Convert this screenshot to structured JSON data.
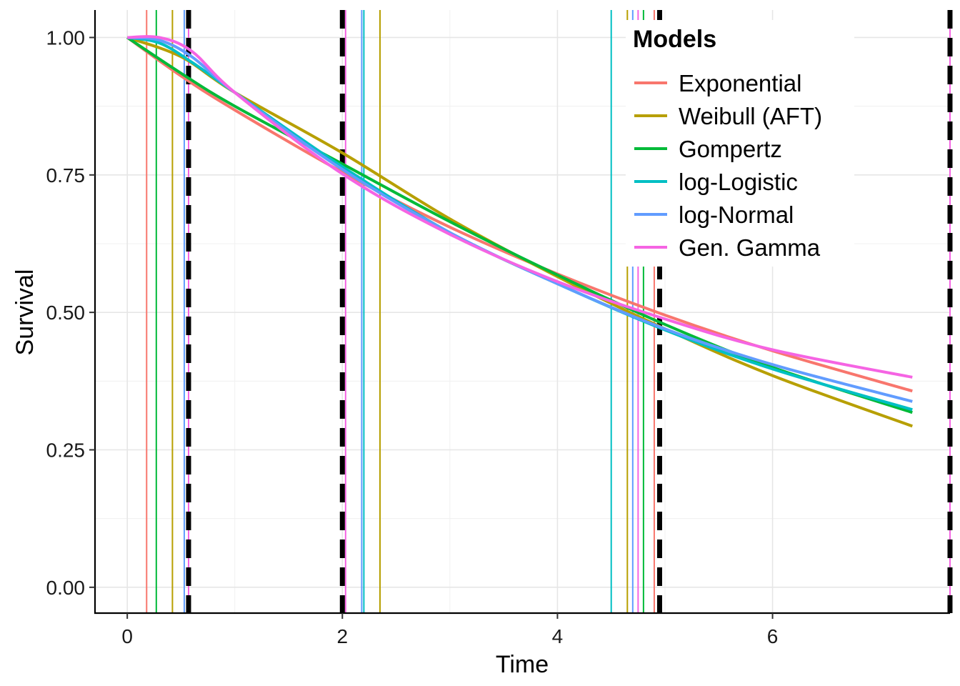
{
  "chart_data": {
    "type": "line",
    "title": "",
    "xlabel": "Time",
    "ylabel": "Survival",
    "xlim": [
      -0.3,
      7.65
    ],
    "ylim": [
      -0.047,
      1.05
    ],
    "x_ticks": [
      0,
      2,
      4,
      6
    ],
    "x_tick_labels": [
      "0",
      "2",
      "4",
      "6"
    ],
    "y_ticks": [
      0,
      0.25,
      0.5,
      0.75,
      1.0
    ],
    "y_tick_labels": [
      "0.00",
      "0.25",
      "0.50",
      "0.75",
      "1.00"
    ],
    "grid": true,
    "legend": {
      "title": "Models",
      "position": "top-right"
    },
    "series": [
      {
        "name": "Exponential",
        "color": "#F8766D",
        "x": [
          0,
          0.5,
          1,
          2,
          3,
          4,
          5,
          6,
          7.3
        ],
        "y": [
          1.0,
          0.93,
          0.868,
          0.755,
          0.655,
          0.57,
          0.495,
          0.43,
          0.357
        ]
      },
      {
        "name": "Weibull (AFT)",
        "color": "#B79F00",
        "x": [
          0,
          0.5,
          1,
          2,
          3,
          4,
          5,
          6,
          7.3
        ],
        "y": [
          1.0,
          0.965,
          0.9,
          0.79,
          0.67,
          0.565,
          0.47,
          0.385,
          0.293
        ]
      },
      {
        "name": "Gompertz",
        "color": "#00BA38",
        "x": [
          0,
          0.5,
          1,
          2,
          3,
          4,
          5,
          6,
          7.3
        ],
        "y": [
          1.0,
          0.935,
          0.875,
          0.77,
          0.665,
          0.568,
          0.478,
          0.4,
          0.318
        ]
      },
      {
        "name": "log-Logistic",
        "color": "#00BFC4",
        "x": [
          0,
          0.3,
          0.6,
          1,
          2,
          3,
          4,
          5,
          6,
          7.3
        ],
        "y": [
          1.0,
          0.99,
          0.955,
          0.9,
          0.765,
          0.645,
          0.552,
          0.468,
          0.397,
          0.323
        ]
      },
      {
        "name": "log-Normal",
        "color": "#619CFF",
        "x": [
          0,
          0.3,
          0.6,
          1,
          2,
          3,
          4,
          5,
          6,
          7.3
        ],
        "y": [
          1.0,
          0.995,
          0.965,
          0.9,
          0.76,
          0.645,
          0.552,
          0.47,
          0.405,
          0.338
        ]
      },
      {
        "name": "Gen. Gamma",
        "color": "#F564E3",
        "x": [
          0,
          0.3,
          0.6,
          1,
          2,
          3,
          4,
          5,
          6,
          7.3
        ],
        "y": [
          1.0,
          1.0,
          0.975,
          0.9,
          0.752,
          0.642,
          0.556,
          0.488,
          0.432,
          0.382
        ]
      }
    ],
    "reference_lines_dashed": {
      "color": "#000000",
      "x": [
        0.57,
        2.0,
        4.95,
        7.65
      ]
    },
    "reference_lines_thin": [
      {
        "color": "#F8766D",
        "x": [
          0.18,
          4.9
        ]
      },
      {
        "color": "#B79F00",
        "x": [
          0.42,
          2.35,
          4.65
        ]
      },
      {
        "color": "#00BA38",
        "x": [
          0.27,
          4.8
        ]
      },
      {
        "color": "#00BFC4",
        "x": [
          2.2,
          4.5
        ]
      },
      {
        "color": "#619CFF",
        "x": [
          0.53,
          2.18,
          4.7
        ]
      },
      {
        "color": "#F564E3",
        "x": [
          0.57,
          2.03,
          4.75,
          7.65
        ]
      }
    ]
  }
}
